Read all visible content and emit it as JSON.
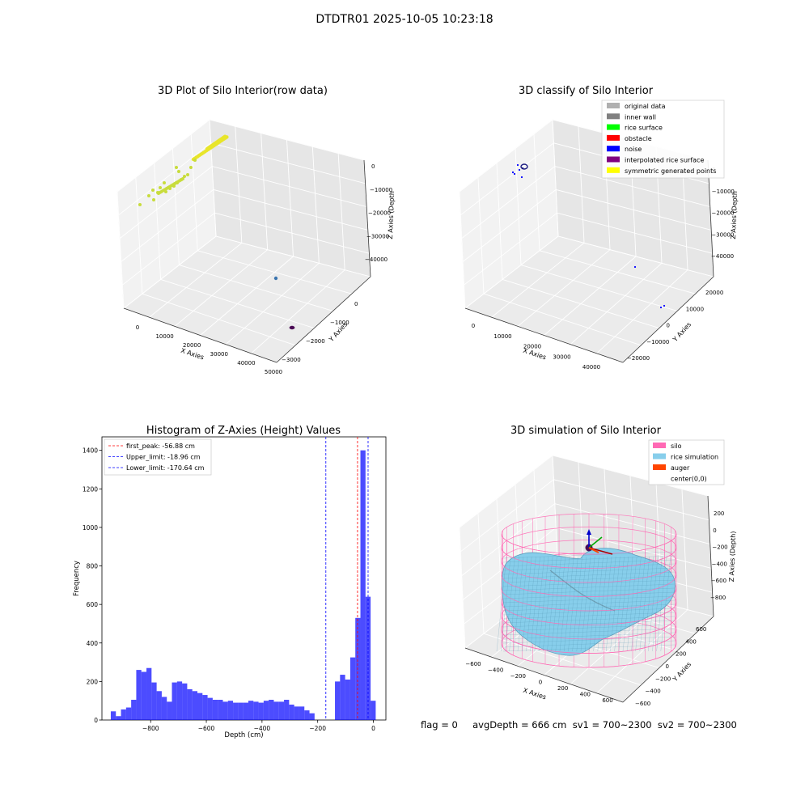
{
  "figure": {
    "suptitle": "DTDTR01 2025-10-05 10:23:18",
    "footer": "flag = 0     avgDepth = 666 cm  sv1 = 700~2300  sv2 = 700~2300"
  },
  "chart_data": [
    {
      "type": "scatter",
      "title": "3D Plot of Silo Interior(row data)",
      "xlabel": "X Axies",
      "ylabel": "Y Axies",
      "zlabel": "Z Axies (Depth",
      "xticks": [
        "0",
        "10000",
        "20000",
        "30000",
        "40000",
        "50000"
      ],
      "yticks": [
        "0",
        "−1000",
        "−2000",
        "−3000"
      ],
      "zticks": [
        "0",
        "−10000",
        "−20000",
        "−30000",
        "−40000"
      ],
      "xlim": [
        -2000,
        50000
      ],
      "ylim": [
        -3200,
        900
      ],
      "zlim": [
        -45000,
        1000
      ],
      "grid": true,
      "series": [
        {
          "color": "#e8e52a",
          "points": [
            {
              "x": 1000,
              "y": 500,
              "z": -1000
            },
            {
              "x": 1500,
              "y": 480,
              "z": -800
            },
            {
              "x": 2000,
              "y": 460,
              "z": -600
            },
            {
              "x": 2500,
              "y": 440,
              "z": -400
            },
            {
              "x": 3000,
              "y": 420,
              "z": -200
            },
            {
              "x": 3500,
              "y": 400,
              "z": 0
            },
            {
              "x": 4000,
              "y": 380,
              "z": 100
            },
            {
              "x": 4500,
              "y": 360,
              "z": 200
            },
            {
              "x": 5000,
              "y": 340,
              "z": 250
            },
            {
              "x": 5500,
              "y": 320,
              "z": 300
            },
            {
              "x": 6000,
              "y": 300,
              "z": 350
            },
            {
              "x": 6500,
              "y": 280,
              "z": 400
            }
          ]
        },
        {
          "color": "#c8dc3c",
          "points": [
            {
              "x": 0,
              "y": -400,
              "z": -16000
            },
            {
              "x": 500,
              "y": -380,
              "z": -14500
            },
            {
              "x": 1000,
              "y": -360,
              "z": -13000
            },
            {
              "x": 1500,
              "y": -340,
              "z": -12000
            },
            {
              "x": 2000,
              "y": -320,
              "z": -11000
            },
            {
              "x": 2500,
              "y": -300,
              "z": -10000
            },
            {
              "x": 3000,
              "y": -280,
              "z": -9000
            },
            {
              "x": 3500,
              "y": -260,
              "z": -8000
            },
            {
              "x": 4000,
              "y": -240,
              "z": -7000
            },
            {
              "x": 4500,
              "y": -220,
              "z": -6000
            },
            {
              "x": -1000,
              "y": -200,
              "z": -17000
            },
            {
              "x": -500,
              "y": 0,
              "z": -14000
            },
            {
              "x": 2000,
              "y": 200,
              "z": -9000
            },
            {
              "x": 2500,
              "y": 300,
              "z": -7000
            }
          ]
        },
        {
          "color": "#3b75af",
          "points": [
            {
              "x": 38000,
              "y": -1600,
              "z": -40000
            }
          ]
        },
        {
          "color": "#4b0a55",
          "points": [
            {
              "x": 44000,
              "y": -3000,
              "z": -43000
            },
            {
              "x": 44300,
              "y": -3000,
              "z": -43000
            }
          ]
        }
      ]
    },
    {
      "type": "scatter",
      "title": "3D classify of Silo Interior",
      "xlabel": "X Axies",
      "ylabel": "Y Axies",
      "zlabel": "Z Axies (Depth",
      "xticks": [
        "0",
        "10000",
        "20000",
        "30000",
        "40000"
      ],
      "yticks": [
        "−20000",
        "−10000",
        "0",
        "10000",
        "20000"
      ],
      "zticks": [
        "0",
        "−10000",
        "−20000",
        "−30000",
        "−40000"
      ],
      "xlim": [
        -2000,
        46000
      ],
      "ylim": [
        -24000,
        24000
      ],
      "zlim": [
        -45000,
        1000
      ],
      "grid": true,
      "legend": {
        "location": "upper right",
        "entries": [
          {
            "label": "original data",
            "color": "#b0b0b0"
          },
          {
            "label": "inner wall",
            "color": "#808080"
          },
          {
            "label": "rice surface",
            "color": "#00ff00"
          },
          {
            "label": "obstacle",
            "color": "#ff0000"
          },
          {
            "label": "noise",
            "color": "#0000ff"
          },
          {
            "label": "interpolated rice surface",
            "color": "#800080"
          },
          {
            "label": "symmetric generated points",
            "color": "#ffff00"
          }
        ]
      },
      "series": [
        {
          "color": "#1a1a80",
          "points": [
            {
              "x": 2000,
              "y": 800,
              "z": 0
            },
            {
              "x": 2300,
              "y": 900,
              "z": 200
            },
            {
              "x": 2600,
              "y": 700,
              "z": -300
            },
            {
              "x": 1800,
              "y": 600,
              "z": 300
            }
          ]
        },
        {
          "color": "#0000ff",
          "points": [
            {
              "x": -1500,
              "y": -1000,
              "z": -6000
            },
            {
              "x": -1000,
              "y": -800,
              "z": -5000
            },
            {
              "x": 1500,
              "y": 0,
              "z": -9000
            },
            {
              "x": 40000,
              "y": 6000,
              "z": -29000
            },
            {
              "x": 43000,
              "y": -2000,
              "z": -34000
            },
            {
              "x": 43500,
              "y": -2500,
              "z": -34500
            }
          ]
        }
      ]
    },
    {
      "type": "bar",
      "title": "Histogram of Z-Axies (Height) Values",
      "xlabel": "Depth (cm)",
      "ylabel": "Frequency",
      "xlim": [
        -975,
        45
      ],
      "ylim": [
        0,
        1470
      ],
      "xticks": [
        "−800",
        "−600",
        "−400",
        "−200",
        "0"
      ],
      "yticks": [
        "0",
        "200",
        "400",
        "600",
        "800",
        "1000",
        "1200",
        "1400"
      ],
      "bin_start": -943.2,
      "bin_width": 18.3,
      "bar_color": "#0000ff",
      "values": [
        45,
        20,
        55,
        65,
        105,
        260,
        250,
        270,
        195,
        150,
        120,
        95,
        195,
        200,
        190,
        160,
        150,
        140,
        130,
        115,
        105,
        105,
        95,
        100,
        90,
        90,
        90,
        100,
        95,
        90,
        100,
        105,
        95,
        95,
        105,
        80,
        70,
        70,
        50,
        35,
        0,
        0,
        0,
        0,
        200,
        235,
        210,
        325,
        530,
        1400,
        640,
        100
      ],
      "reference_lines": [
        {
          "label": "first_peak: -56.88 cm",
          "x": -56.88,
          "color": "#ff0000"
        },
        {
          "label": "Upper_limit: -18.96 cm",
          "x": -18.96,
          "color": "#0000ff"
        },
        {
          "label": "Lower_limit: -170.64 cm",
          "x": -170.64,
          "color": "#0000ff"
        }
      ],
      "legend": {
        "location": "upper left"
      }
    },
    {
      "type": "surface",
      "title": "3D simulation of Silo Interior",
      "xlabel": "X Axies",
      "ylabel": "Y Axies",
      "zlabel": "Z Axies (Depth)",
      "xticks": [
        "−600",
        "−400",
        "−200",
        "0",
        "200",
        "400",
        "600"
      ],
      "yticks": [
        "−600",
        "−400",
        "−200",
        "0",
        "200",
        "400",
        "600"
      ],
      "zticks": [
        "200",
        "0",
        "−200",
        "−400",
        "−600",
        "−800"
      ],
      "xlim": [
        -650,
        650
      ],
      "ylim": [
        -650,
        650
      ],
      "zlim": [
        -950,
        300
      ],
      "silo": {
        "radius": 600,
        "top": 0,
        "bottom": -900,
        "color": "#ff69b4"
      },
      "rice_color": "#87ceeb",
      "legend": {
        "location": "upper right",
        "entries": [
          {
            "label": "silo",
            "color": "#ff69b4"
          },
          {
            "label": "rice simulation",
            "color": "#87ceeb"
          },
          {
            "label": "auger",
            "color": "#ff4500"
          },
          {
            "label": "center(0,0)",
            "color": ""
          }
        ]
      }
    }
  ]
}
